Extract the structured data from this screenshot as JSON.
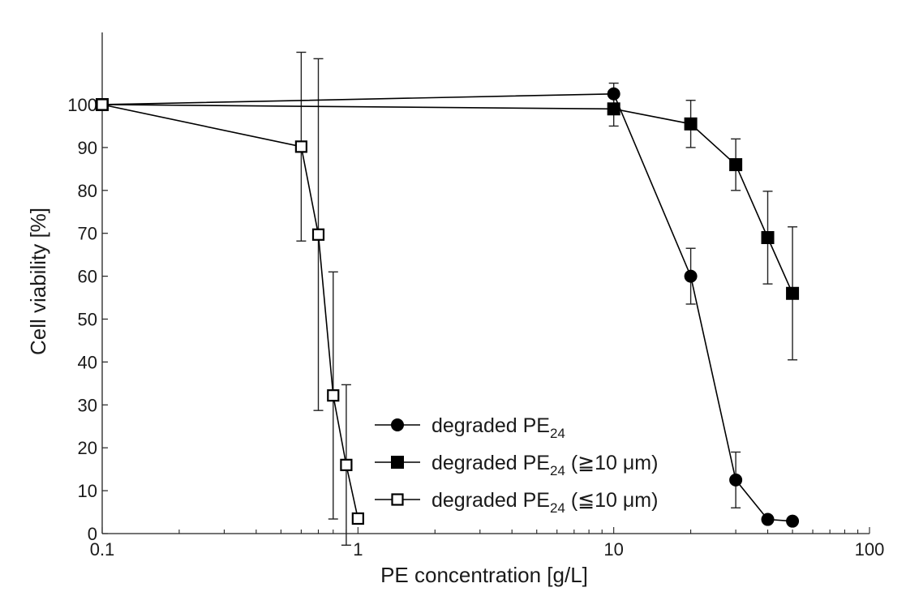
{
  "chart_data": {
    "type": "line",
    "xlabel": "PE concentration [g/L]",
    "ylabel": "Cell viability [%]",
    "x_scale": "log",
    "xlim": [
      0.1,
      100
    ],
    "ylim": [
      0,
      110
    ],
    "x_ticks": [
      0.1,
      1,
      10,
      100
    ],
    "x_tick_labels": [
      "0.1",
      "1",
      "10",
      "100"
    ],
    "y_ticks": [
      0,
      10,
      20,
      30,
      40,
      50,
      60,
      70,
      80,
      90,
      100
    ],
    "y_tick_labels": [
      "0",
      "10",
      "20",
      "30",
      "40",
      "50",
      "60",
      "70",
      "80",
      "90",
      "100"
    ],
    "grid": false,
    "legend_position": "bottom-center",
    "series": [
      {
        "name": "degraded PE",
        "name_sub": "24",
        "name_suffix": "",
        "marker": "circle-filled",
        "x": [
          0.1,
          10,
          20,
          30,
          40,
          50
        ],
        "y": [
          100,
          102.5,
          60,
          12.5,
          3.3,
          2.9
        ],
        "err": [
          0,
          2.5,
          6.5,
          6.5,
          0,
          0
        ]
      },
      {
        "name": "degraded PE",
        "name_sub": "24",
        "name_suffix": " (≧10 μm)",
        "marker": "square-filled",
        "x": [
          0.1,
          10,
          20,
          30,
          40,
          50
        ],
        "y": [
          100,
          99,
          95.5,
          86,
          69,
          56
        ],
        "err": [
          0,
          4,
          5.5,
          6,
          10.8,
          15.5
        ]
      },
      {
        "name": "degraded PE",
        "name_sub": "24",
        "name_suffix": " (≦10 μm)",
        "marker": "square-open",
        "x": [
          0.1,
          0.6,
          0.7,
          0.8,
          0.9,
          1
        ],
        "y": [
          100,
          90.2,
          69.7,
          32.2,
          16,
          3.5
        ],
        "err": [
          0,
          22,
          41,
          28.8,
          18.7,
          0
        ]
      }
    ]
  }
}
